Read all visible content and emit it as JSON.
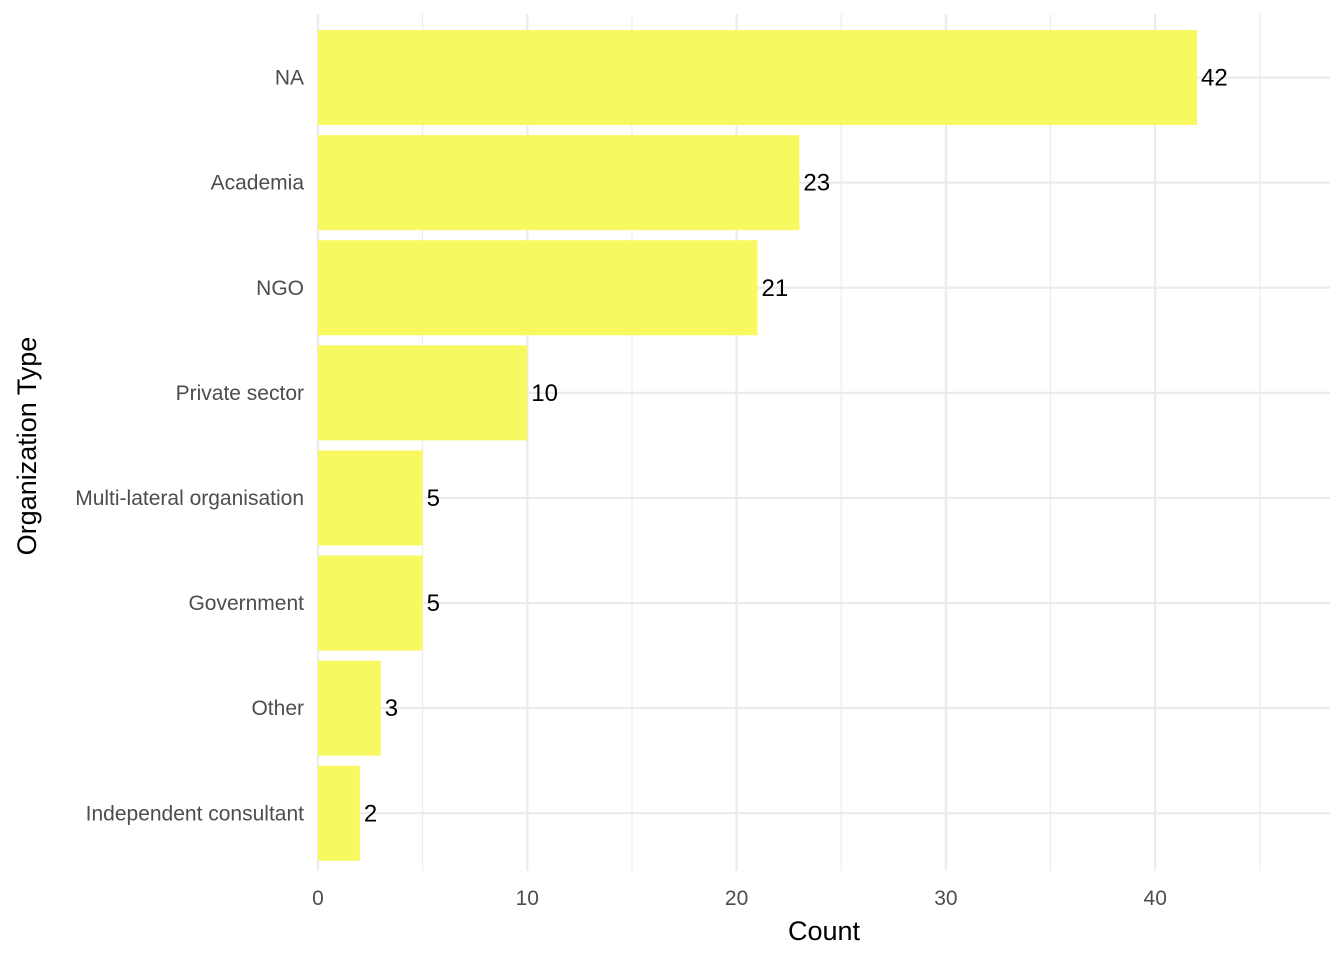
{
  "chart_data": {
    "type": "bar",
    "orientation": "horizontal",
    "categories": [
      "NA",
      "Academia",
      "NGO",
      "Private sector",
      "Multi-lateral organisation",
      "Government",
      "Other",
      "Independent consultant"
    ],
    "values": [
      42,
      23,
      21,
      10,
      5,
      5,
      3,
      2
    ],
    "title": "",
    "xlabel": "Count",
    "ylabel": "Organization Type",
    "xlim": [
      0,
      48.3
    ],
    "xticks": [
      0,
      10,
      20,
      30,
      40
    ],
    "grid": true,
    "bar_color": "#F8F961",
    "grid_color": "#EBEBEB"
  }
}
